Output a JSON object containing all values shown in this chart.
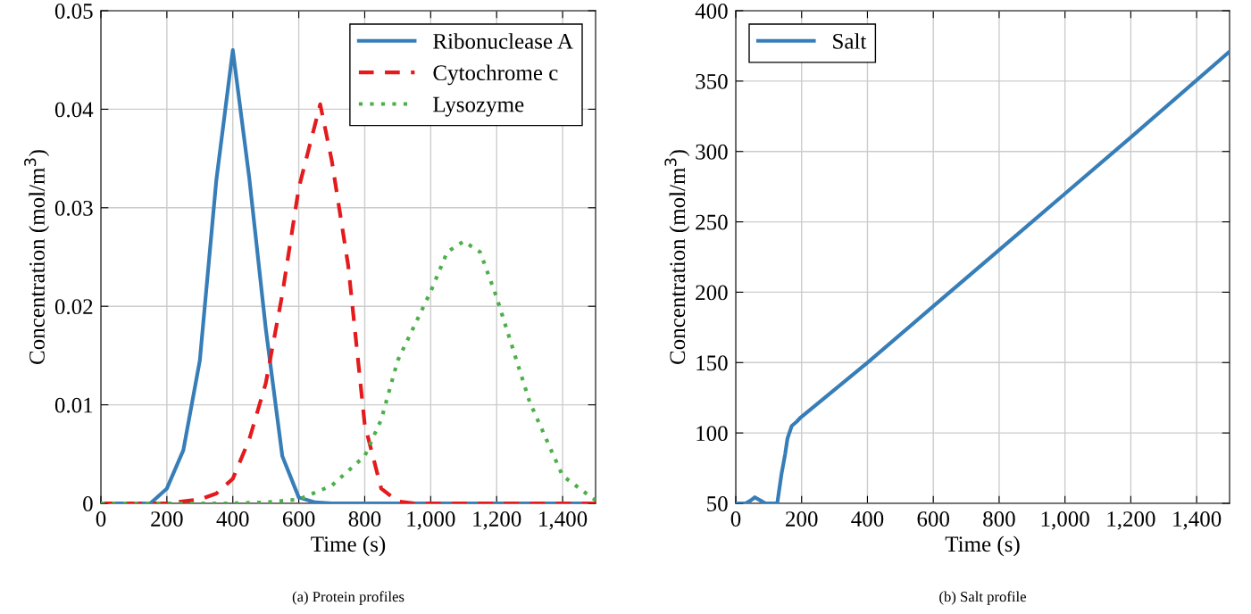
{
  "chart_data": [
    {
      "type": "line",
      "xlabel": "Time (s)",
      "ylabel": "Concentration (mol/m$^{3}$)",
      "annotations": [
        "(a) Protein profiles"
      ],
      "xlim": [
        0,
        1500
      ],
      "ylim": [
        0,
        0.05
      ],
      "xticks": [
        0,
        200,
        400,
        600,
        800,
        {
          "value": 1000,
          "label": "1,000"
        },
        {
          "value": 1200,
          "label": "1,200"
        },
        {
          "value": 1400,
          "label": "1,400"
        }
      ],
      "yticks": [
        0,
        0.01,
        0.02,
        0.03,
        0.04,
        0.05
      ],
      "grid": true,
      "legend": "top right",
      "series": [
        {
          "name": "Ribonuclease A",
          "color": "#377eb8",
          "line_style": "solid",
          "x": [
            0,
            100,
            150,
            200,
            250,
            300,
            350,
            400,
            450,
            500,
            550,
            600,
            650,
            700,
            800,
            1000,
            1500
          ],
          "values": [
            0,
            0,
            0,
            0.0015,
            0.0054,
            0.0145,
            0.0328,
            0.046,
            0.033,
            0.0177,
            0.0048,
            0.0006,
            0.0001,
            0,
            0,
            0,
            0
          ]
        },
        {
          "name": "Cytochrome c",
          "color": "#e41a1c",
          "line_style": "dashed",
          "x": [
            0,
            200,
            300,
            350,
            400,
            450,
            500,
            550,
            600,
            665,
            700,
            750,
            800,
            850,
            900,
            950,
            1000,
            1500
          ],
          "values": [
            0,
            0,
            0.0004,
            0.001,
            0.0025,
            0.0065,
            0.0122,
            0.0212,
            0.032,
            0.0405,
            0.0348,
            0.0241,
            0.008,
            0.0015,
            0.0002,
            0,
            0,
            0
          ]
        },
        {
          "name": "Lysozyme",
          "color": "#4daf4a",
          "line_style": "dotted",
          "x": [
            0,
            400,
            500,
            600,
            700,
            800,
            850,
            900,
            1000,
            1050,
            1100,
            1150,
            1200,
            1300,
            1400,
            1500
          ],
          "values": [
            0,
            0,
            0.0001,
            0.0004,
            0.0018,
            0.0048,
            0.0085,
            0.0145,
            0.0215,
            0.0255,
            0.0266,
            0.0255,
            0.0209,
            0.0103,
            0.0028,
            0.0003
          ]
        }
      ]
    },
    {
      "type": "line",
      "xlabel": "Time (s)",
      "ylabel": "Concentration (mol/m$^{3}$)",
      "annotations": [
        "(b) Salt profile"
      ],
      "xlim": [
        0,
        1500
      ],
      "ylim": [
        50,
        400
      ],
      "xticks": [
        0,
        200,
        400,
        600,
        800,
        {
          "value": 1000,
          "label": "1,000"
        },
        {
          "value": 1200,
          "label": "1,200"
        },
        {
          "value": 1400,
          "label": "1,400"
        }
      ],
      "yticks": [
        50,
        100,
        150,
        200,
        250,
        300,
        350,
        400
      ],
      "grid": true,
      "legend": "top left",
      "series": [
        {
          "name": "Salt",
          "color": "#377eb8",
          "line_style": "solid",
          "x": [
            0,
            30,
            45,
            58,
            75,
            90,
            126,
            139,
            150,
            157,
            170,
            185,
            197,
            400,
            600,
            800,
            1000,
            1200,
            1500
          ],
          "values": [
            50,
            50,
            52,
            54.3,
            52,
            50,
            50,
            71,
            85,
            96,
            105,
            108,
            111,
            150,
            190,
            230,
            270,
            310,
            371
          ]
        }
      ]
    }
  ]
}
